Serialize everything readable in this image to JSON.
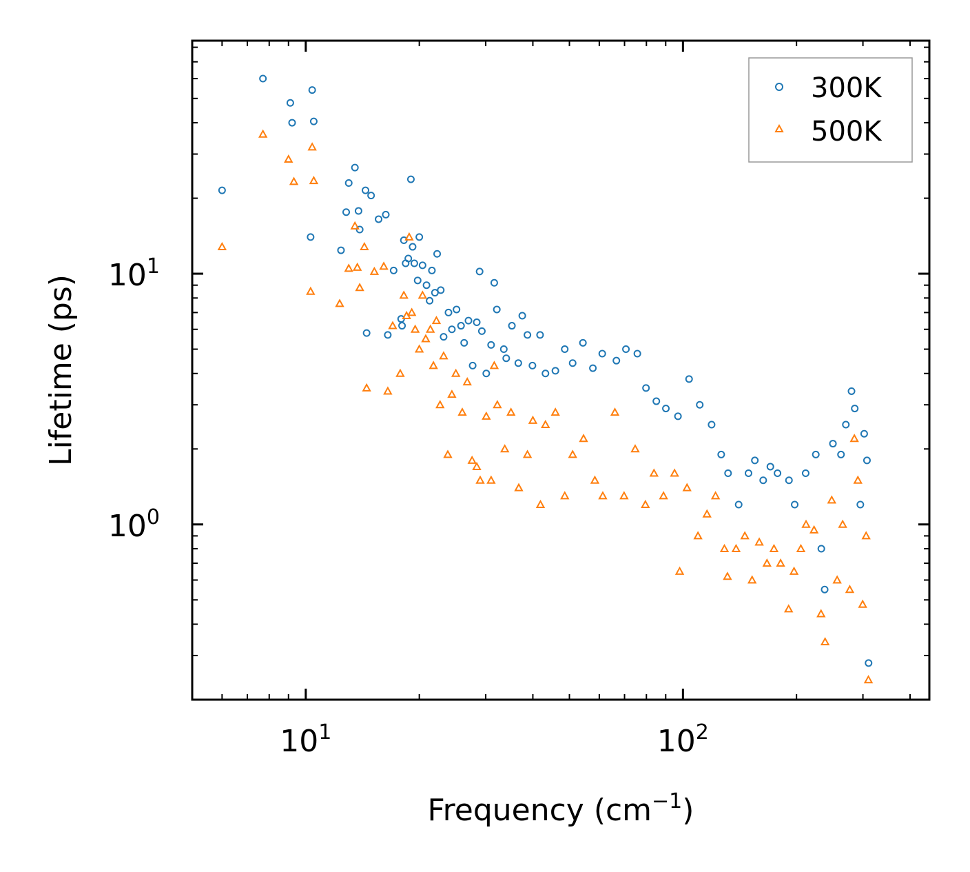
{
  "chart_data": {
    "type": "scatter",
    "xscale": "log",
    "yscale": "log",
    "xlabel": "Frequency (cm",
    "xlabel_sup": "−1",
    "xlabel_end": ")",
    "ylabel": "Lifetime (ps)",
    "xlim": [
      5.0,
      450.0
    ],
    "ylim": [
      0.2,
      85.0
    ],
    "x_ticks": [
      {
        "value": 10,
        "base": "10",
        "exp": "1"
      },
      {
        "value": 100,
        "base": "10",
        "exp": "2"
      }
    ],
    "y_ticks": [
      {
        "value": 1,
        "base": "10",
        "exp": "0"
      },
      {
        "value": 10,
        "base": "10",
        "exp": "1"
      }
    ],
    "legend": {
      "placement": "top-right"
    },
    "series": [
      {
        "name": "300K",
        "marker": "circle",
        "color": "#1f77b4",
        "points": [
          [
            6.0,
            21.5
          ],
          [
            7.7,
            60.0
          ],
          [
            9.1,
            48.0
          ],
          [
            9.2,
            40.0
          ],
          [
            10.3,
            14.0
          ],
          [
            10.4,
            54.0
          ],
          [
            10.5,
            40.5
          ],
          [
            12.4,
            12.4
          ],
          [
            12.8,
            17.6
          ],
          [
            13.0,
            23.0
          ],
          [
            13.5,
            26.5
          ],
          [
            13.8,
            17.8
          ],
          [
            13.9,
            15.0
          ],
          [
            14.4,
            21.5
          ],
          [
            14.5,
            5.8
          ],
          [
            14.9,
            20.5
          ],
          [
            15.6,
            16.5
          ],
          [
            16.3,
            17.2
          ],
          [
            16.5,
            5.7
          ],
          [
            17.1,
            10.3
          ],
          [
            17.9,
            6.6
          ],
          [
            18.0,
            6.2
          ],
          [
            18.2,
            13.6
          ],
          [
            18.4,
            11.0
          ],
          [
            18.7,
            11.5
          ],
          [
            19.0,
            23.8
          ],
          [
            19.2,
            12.8
          ],
          [
            19.4,
            11.0
          ],
          [
            19.8,
            9.4
          ],
          [
            20.0,
            14.0
          ],
          [
            20.4,
            10.8
          ],
          [
            20.9,
            9.0
          ],
          [
            21.3,
            7.8
          ],
          [
            21.6,
            10.3
          ],
          [
            22.0,
            8.4
          ],
          [
            22.3,
            12.0
          ],
          [
            22.8,
            8.6
          ],
          [
            23.2,
            5.6
          ],
          [
            23.9,
            7.0
          ],
          [
            24.4,
            6.0
          ],
          [
            25.1,
            7.2
          ],
          [
            25.8,
            6.2
          ],
          [
            26.3,
            5.3
          ],
          [
            27.0,
            6.5
          ],
          [
            27.7,
            4.3
          ],
          [
            28.4,
            6.4
          ],
          [
            28.9,
            10.2
          ],
          [
            29.3,
            5.9
          ],
          [
            30.1,
            4.0
          ],
          [
            31.0,
            5.2
          ],
          [
            31.6,
            9.2
          ],
          [
            32.1,
            7.2
          ],
          [
            33.5,
            5.0
          ],
          [
            34.0,
            4.6
          ],
          [
            35.2,
            6.2
          ],
          [
            36.6,
            4.4
          ],
          [
            37.5,
            6.8
          ],
          [
            38.7,
            5.7
          ],
          [
            39.9,
            4.3
          ],
          [
            41.8,
            5.7
          ],
          [
            43.2,
            4.0
          ],
          [
            45.9,
            4.1
          ],
          [
            48.6,
            5.0
          ],
          [
            51.0,
            4.4
          ],
          [
            54.3,
            5.3
          ],
          [
            57.7,
            4.2
          ],
          [
            61.1,
            4.8
          ],
          [
            66.6,
            4.5
          ],
          [
            70.6,
            5.0
          ],
          [
            75.7,
            4.8
          ],
          [
            79.8,
            3.5
          ],
          [
            85.0,
            3.1
          ],
          [
            90.1,
            2.9
          ],
          [
            97.0,
            2.7
          ],
          [
            103.8,
            3.8
          ],
          [
            110.8,
            3.0
          ],
          [
            119.1,
            2.5
          ],
          [
            126.3,
            1.9
          ],
          [
            131.7,
            1.6
          ],
          [
            140.5,
            1.2
          ],
          [
            149.2,
            1.6
          ],
          [
            155.1,
            1.8
          ],
          [
            163.2,
            1.5
          ],
          [
            170.5,
            1.7
          ],
          [
            178.1,
            1.6
          ],
          [
            191.0,
            1.5
          ],
          [
            197.8,
            1.2
          ],
          [
            211.5,
            1.6
          ],
          [
            225.0,
            1.9
          ],
          [
            232.7,
            0.8
          ],
          [
            237.5,
            0.55
          ],
          [
            249.8,
            2.1
          ],
          [
            262.4,
            1.9
          ],
          [
            270.3,
            2.5
          ],
          [
            279.8,
            3.4
          ],
          [
            285.4,
            2.9
          ],
          [
            295.3,
            1.2
          ],
          [
            302.3,
            2.3
          ],
          [
            307.5,
            1.8
          ],
          [
            310.5,
            0.28
          ]
        ]
      },
      {
        "name": "500K",
        "marker": "triangle",
        "color": "#ff7f0e",
        "points": [
          [
            6.0,
            12.8
          ],
          [
            7.7,
            36.0
          ],
          [
            9.0,
            28.6
          ],
          [
            9.3,
            23.3
          ],
          [
            10.3,
            8.5
          ],
          [
            10.4,
            32.0
          ],
          [
            10.5,
            23.5
          ],
          [
            12.3,
            7.6
          ],
          [
            13.0,
            10.5
          ],
          [
            13.5,
            15.5
          ],
          [
            13.7,
            10.6
          ],
          [
            13.9,
            8.8
          ],
          [
            14.3,
            12.8
          ],
          [
            14.5,
            3.5
          ],
          [
            15.2,
            10.2
          ],
          [
            16.1,
            10.7
          ],
          [
            16.5,
            3.4
          ],
          [
            17.0,
            6.2
          ],
          [
            17.8,
            4.0
          ],
          [
            18.2,
            8.2
          ],
          [
            18.5,
            6.8
          ],
          [
            18.8,
            14.0
          ],
          [
            19.1,
            7.0
          ],
          [
            19.5,
            6.0
          ],
          [
            20.0,
            5.0
          ],
          [
            20.4,
            8.2
          ],
          [
            20.8,
            5.5
          ],
          [
            21.4,
            6.0
          ],
          [
            21.8,
            4.3
          ],
          [
            22.2,
            6.5
          ],
          [
            22.7,
            3.0
          ],
          [
            23.2,
            4.7
          ],
          [
            23.8,
            1.9
          ],
          [
            24.4,
            3.3
          ],
          [
            25.0,
            4.0
          ],
          [
            26.0,
            2.8
          ],
          [
            26.8,
            3.7
          ],
          [
            27.6,
            1.8
          ],
          [
            28.4,
            1.7
          ],
          [
            29.0,
            1.5
          ],
          [
            30.1,
            2.7
          ],
          [
            31.0,
            1.5
          ],
          [
            31.6,
            4.3
          ],
          [
            32.2,
            3.0
          ],
          [
            33.7,
            2.0
          ],
          [
            35.0,
            2.8
          ],
          [
            36.7,
            1.4
          ],
          [
            38.7,
            1.9
          ],
          [
            40.0,
            2.6
          ],
          [
            41.9,
            1.2
          ],
          [
            43.2,
            2.5
          ],
          [
            45.9,
            2.8
          ],
          [
            48.6,
            1.3
          ],
          [
            51.0,
            1.9
          ],
          [
            54.5,
            2.2
          ],
          [
            58.4,
            1.5
          ],
          [
            61.3,
            1.3
          ],
          [
            66.0,
            2.8
          ],
          [
            69.8,
            1.3
          ],
          [
            74.7,
            2.0
          ],
          [
            79.5,
            1.2
          ],
          [
            83.8,
            1.6
          ],
          [
            88.8,
            1.3
          ],
          [
            95.0,
            1.6
          ],
          [
            98.0,
            0.65
          ],
          [
            102.5,
            1.4
          ],
          [
            109.6,
            0.9
          ],
          [
            115.8,
            1.1
          ],
          [
            122.0,
            1.3
          ],
          [
            128.8,
            0.8
          ],
          [
            131.2,
            0.62
          ],
          [
            138.3,
            0.8
          ],
          [
            145.9,
            0.9
          ],
          [
            152.5,
            0.6
          ],
          [
            159.3,
            0.85
          ],
          [
            167.0,
            0.7
          ],
          [
            174.3,
            0.8
          ],
          [
            181.5,
            0.7
          ],
          [
            190.6,
            0.46
          ],
          [
            197.0,
            0.65
          ],
          [
            205.4,
            0.8
          ],
          [
            212.0,
            1.0
          ],
          [
            222.6,
            0.95
          ],
          [
            232.3,
            0.44
          ],
          [
            238.1,
            0.34
          ],
          [
            248.0,
            1.25
          ],
          [
            256.3,
            0.6
          ],
          [
            265.1,
            1.0
          ],
          [
            276.8,
            0.55
          ],
          [
            284.7,
            2.2
          ],
          [
            290.9,
            1.5
          ],
          [
            299.5,
            0.48
          ],
          [
            305.9,
            0.9
          ],
          [
            310.2,
            0.24
          ]
        ]
      }
    ]
  }
}
